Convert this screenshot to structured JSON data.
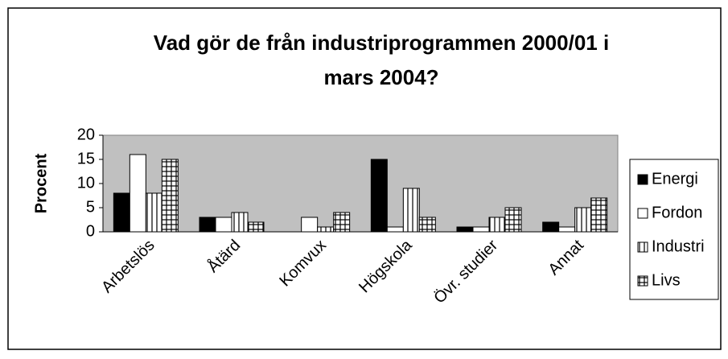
{
  "chart_data": {
    "type": "bar",
    "title": [
      "Vad gör de från industriprogrammen 2000/01 i",
      "mars 2004?"
    ],
    "y_label": "Procent",
    "categories": [
      "Arbetslös",
      "Åtärd",
      "Komvux",
      "Högskola",
      "Övr. studier",
      "Annat"
    ],
    "series": [
      {
        "name": "Energi",
        "color": "#000000",
        "pattern": "solid",
        "values": [
          8,
          3,
          0,
          15,
          1,
          2
        ]
      },
      {
        "name": "Fordon",
        "color": "#ffffff",
        "pattern": "solid",
        "values": [
          16,
          3,
          3,
          1,
          1,
          1
        ]
      },
      {
        "name": "Industri",
        "color": "#ffffff",
        "pattern": "vertical",
        "values": [
          8,
          4,
          1,
          9,
          3,
          5
        ]
      },
      {
        "name": "Livs",
        "color": "#ffffff",
        "pattern": "grid",
        "values": [
          15,
          2,
          4,
          3,
          5,
          7
        ]
      }
    ],
    "ylim": [
      0,
      20
    ],
    "yticks": [
      0,
      5,
      10,
      15,
      20
    ],
    "grid": false,
    "legend": "right"
  }
}
